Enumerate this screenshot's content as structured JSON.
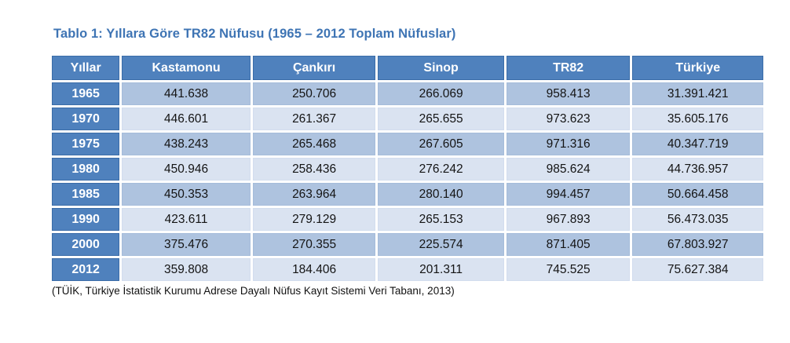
{
  "title": "Tablo 1: Yıllara Göre TR82 Nüfusu (1965 – 2012 Toplam Nüfuslar)",
  "source_note": "(TÜİK, Türkiye İstatistik Kurumu Adrese Dayalı Nüfus Kayıt Sistemi Veri Tabanı, 2013)",
  "colors": {
    "title_blue": "#3e74b4",
    "header_fill": "#4f81bd",
    "header_border": "#3a6ca8",
    "band_dark": "#aec3df",
    "band_light": "#dae3f1",
    "header_text": "#ffffff",
    "cell_text": "#141414"
  },
  "table": {
    "columns": [
      "Yıllar",
      "Kastamonu",
      "Çankırı",
      "Sinop",
      "TR82",
      "Türkiye"
    ],
    "rows": [
      {
        "year": "1965",
        "values": [
          "441.638",
          "250.706",
          "266.069",
          "958.413",
          "31.391.421"
        ]
      },
      {
        "year": "1970",
        "values": [
          "446.601",
          "261.367",
          "265.655",
          "973.623",
          "35.605.176"
        ]
      },
      {
        "year": "1975",
        "values": [
          "438.243",
          "265.468",
          "267.605",
          "971.316",
          "40.347.719"
        ]
      },
      {
        "year": "1980",
        "values": [
          "450.946",
          "258.436",
          "276.242",
          "985.624",
          "44.736.957"
        ]
      },
      {
        "year": "1985",
        "values": [
          "450.353",
          "263.964",
          "280.140",
          "994.457",
          "50.664.458"
        ]
      },
      {
        "year": "1990",
        "values": [
          "423.611",
          "279.129",
          "265.153",
          "967.893",
          "56.473.035"
        ]
      },
      {
        "year": "2000",
        "values": [
          "375.476",
          "270.355",
          "225.574",
          "871.405",
          "67.803.927"
        ]
      },
      {
        "year": "2012",
        "values": [
          "359.808",
          "184.406",
          "201.311",
          "745.525",
          "75.627.384"
        ]
      }
    ]
  }
}
